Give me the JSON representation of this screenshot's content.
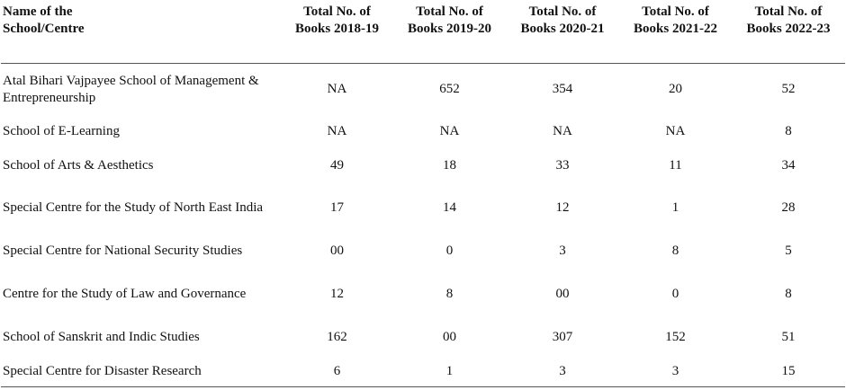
{
  "table": {
    "header": [
      "Name of the School/Centre",
      "Total No. of Books 2018-19",
      "Total No. of Books 2019-20",
      "Total No. of Books 2020-21",
      "Total No. of Books 2021-22",
      "Total No. of Books 2022-23"
    ],
    "rows": [
      [
        "Atal Bihari Vajpayee School of Management & Entrepreneurship",
        "NA",
        "652",
        "354",
        "20",
        "52"
      ],
      [
        "School of E-Learning",
        "NA",
        "NA",
        "NA",
        "NA",
        "8"
      ],
      [
        "School of Arts & Aesthetics",
        "49",
        "18",
        "33",
        "11",
        "34"
      ],
      [
        "Special Centre for the Study of North East India",
        "17",
        "14",
        "12",
        "1",
        "28"
      ],
      [
        "Special Centre for National Security Studies",
        "00",
        "0",
        "3",
        "8",
        "5"
      ],
      [
        "Centre for the Study of Law and Governance",
        "12",
        "8",
        "00",
        "0",
        "8"
      ],
      [
        "School of Sanskrit and Indic Studies",
        "162",
        "00",
        "307",
        "152",
        "51"
      ],
      [
        "Special Centre for Disaster Research",
        "6",
        "1",
        "3",
        "3",
        "15"
      ]
    ]
  }
}
